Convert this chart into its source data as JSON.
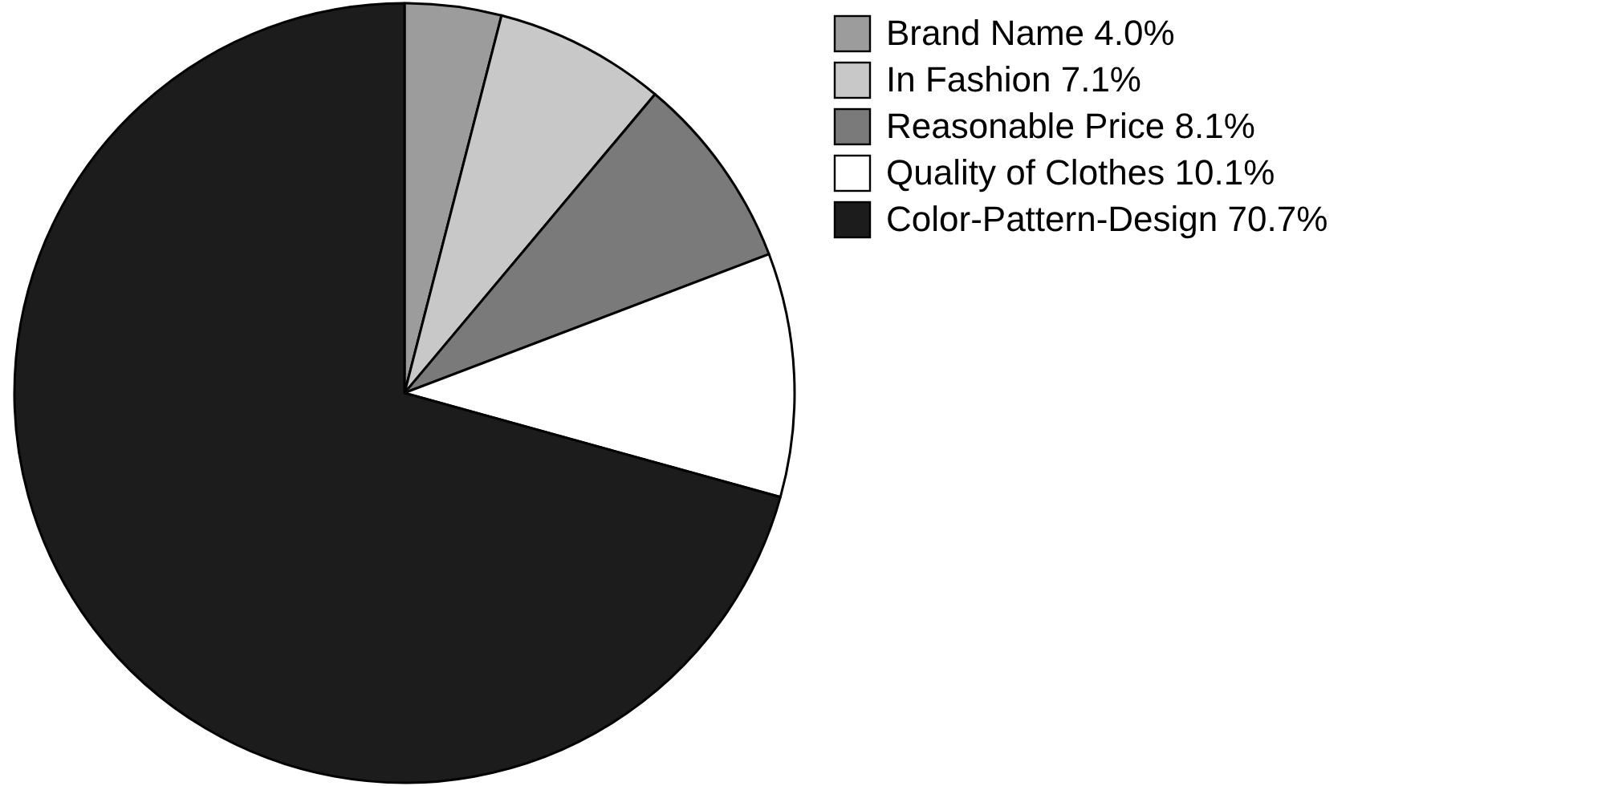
{
  "chart_data": {
    "type": "pie",
    "categories": [
      "Brand Name",
      "In Fashion",
      "Reasonable Price",
      "Quality of Clothes",
      "Color-Pattern-Design"
    ],
    "values": [
      4.0,
      7.1,
      8.1,
      10.1,
      70.7
    ],
    "value_labels": [
      "4.0%",
      "7.1%",
      "8.1%",
      "10.1%",
      "70.7%"
    ],
    "colors": [
      "#9c9c9c",
      "#c8c8c8",
      "#7a7a7a",
      "#ffffff",
      "#1c1c1c"
    ],
    "legend": "top right"
  }
}
